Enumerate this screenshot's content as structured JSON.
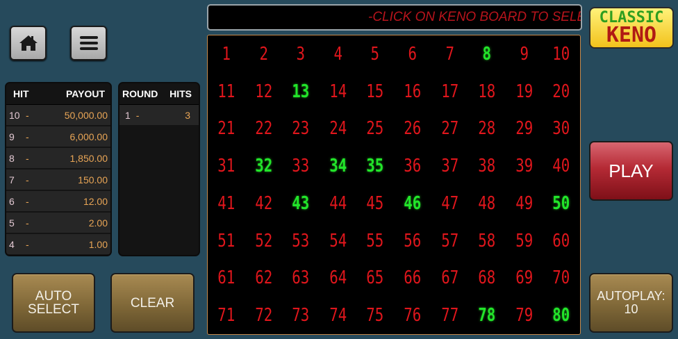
{
  "message": "-CLICK ON KENO BOARD TO SELECT",
  "logo": {
    "line1": "CLASSIC",
    "line2": "KENO"
  },
  "payout_table": {
    "headers": {
      "hit": "HIT",
      "payout": "PAYOUT"
    },
    "rows": [
      {
        "hit": "10",
        "payout": "50,000.00"
      },
      {
        "hit": "9",
        "payout": "6,000.00"
      },
      {
        "hit": "8",
        "payout": "1,850.00"
      },
      {
        "hit": "7",
        "payout": "150.00"
      },
      {
        "hit": "6",
        "payout": "12.00"
      },
      {
        "hit": "5",
        "payout": "2.00"
      },
      {
        "hit": "4",
        "payout": "1.00"
      }
    ]
  },
  "rounds_table": {
    "headers": {
      "round": "ROUND",
      "hits": "HITS"
    },
    "rows": [
      {
        "round": "1",
        "hits": "3"
      }
    ]
  },
  "separator": "-",
  "buttons": {
    "auto_select": "AUTO SELECT",
    "clear": "CLEAR",
    "play": "PLAY",
    "autoplay": "AUTOPLAY: 10"
  },
  "icons": {
    "home": "home-icon",
    "menu": "hamburger-menu-icon"
  },
  "board": {
    "count": 80,
    "selected": [
      8,
      13,
      32,
      34,
      35,
      43,
      46,
      50,
      78,
      80
    ]
  },
  "colors": {
    "number": "#e0161c",
    "selected": "#22e52a",
    "background": "#264a5c"
  }
}
